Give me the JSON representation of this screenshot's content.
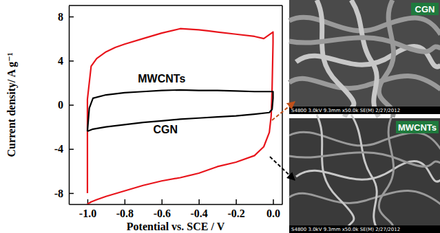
{
  "chart_data": {
    "type": "line",
    "x_label": "Potential vs. SCE / V",
    "y_label": "Current density/ A g⁻¹",
    "xlim": [
      -1.1,
      0.05
    ],
    "ylim": [
      -9,
      9
    ],
    "xticks": [
      {
        "value": -1.0,
        "label": "-1.0"
      },
      {
        "value": -0.8,
        "label": "-0.8"
      },
      {
        "value": -0.6,
        "label": "-0.6"
      },
      {
        "value": -0.4,
        "label": "-0.4"
      },
      {
        "value": -0.2,
        "label": "-0.2"
      },
      {
        "value": 0.0,
        "label": "0.0"
      }
    ],
    "yticks": [
      -8,
      -4,
      0,
      4,
      8
    ],
    "series": [
      {
        "color": "#e8141b",
        "x": [
          -1.0,
          -1.0,
          -0.98,
          -0.95,
          -0.9,
          -0.85,
          -0.8,
          -0.7,
          -0.6,
          -0.5,
          -0.4,
          -0.35,
          -0.3,
          -0.2,
          -0.1,
          -0.05,
          0.0,
          0.0,
          -0.005,
          -0.01,
          -0.02,
          -0.05,
          -0.1,
          -0.2,
          -0.3,
          -0.35,
          -0.4,
          -0.5,
          -0.6,
          -0.7,
          -0.8,
          -0.9,
          -0.95,
          -0.98,
          -1.0
        ],
        "values": [
          -8.0,
          0.5,
          3.5,
          4.2,
          4.8,
          5.2,
          5.5,
          6.0,
          6.5,
          6.9,
          6.8,
          6.7,
          6.6,
          6.4,
          6.2,
          6.0,
          6.6,
          5.6,
          1.5,
          -1.0,
          -2.5,
          -3.8,
          -4.6,
          -5.2,
          -5.6,
          -5.9,
          -6.2,
          -6.6,
          -6.9,
          -7.3,
          -7.8,
          -8.3,
          -8.6,
          -8.8,
          -9.0
        ]
      },
      {
        "color": "#000000",
        "x": [
          -1.0,
          -0.99,
          -0.97,
          -0.9,
          -0.8,
          -0.7,
          -0.6,
          -0.5,
          -0.4,
          -0.3,
          -0.2,
          -0.1,
          0.0,
          0.0,
          -0.005,
          -0.02,
          -0.1,
          -0.2,
          -0.3,
          -0.4,
          -0.5,
          -0.6,
          -0.7,
          -0.8,
          -0.9,
          -0.97,
          -1.0
        ],
        "values": [
          -2.4,
          -0.3,
          0.6,
          0.9,
          1.1,
          1.2,
          1.3,
          1.35,
          1.3,
          1.3,
          1.25,
          1.2,
          1.2,
          0.6,
          -0.4,
          -0.7,
          -0.85,
          -1.0,
          -1.1,
          -1.2,
          -1.3,
          -1.45,
          -1.6,
          -1.8,
          -2.0,
          -2.2,
          -2.4
        ]
      }
    ],
    "annotations": [
      {
        "text": "MWCNTs",
        "x": -0.6,
        "y": 2.0
      },
      {
        "text": "CGN",
        "x": -0.58,
        "y": -2.6
      }
    ]
  },
  "images": [
    {
      "label": "CGN",
      "caption": "S4800 3.0kV 9.3mm x50.0k SE(M) 2/27/2012"
    },
    {
      "label": "MWCNTs",
      "caption": "S4800 3.0kV 9.3mm x50.0k SE(M) 2/27/2012"
    }
  ]
}
